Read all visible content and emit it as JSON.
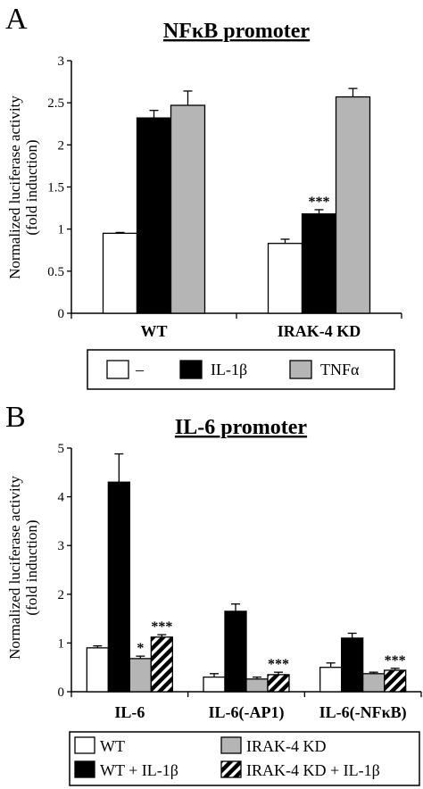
{
  "colors": {
    "white": "#ffffff",
    "black": "#000000",
    "gray": "#b5b5b5",
    "hatch": "hatched-black-white"
  },
  "chart_data": [
    {
      "panel": "A",
      "type": "bar",
      "title": "NFκB promoter",
      "ylabel_line1": "Normalized luciferase activity",
      "ylabel_line2": "(fold induction)",
      "ylim": [
        0,
        3
      ],
      "yticks": [
        "0",
        "0.5",
        "1",
        "1.5",
        "2",
        "2.5",
        "3"
      ],
      "categories": [
        "WT",
        "IRAK-4 KD"
      ],
      "series": [
        {
          "name": "–",
          "color": "#ffffff",
          "values": [
            0.95,
            0.83
          ],
          "errors": [
            0.01,
            0.05
          ],
          "stars": [
            "",
            ""
          ]
        },
        {
          "name": "IL-1β",
          "color": "#000000",
          "values": [
            2.32,
            1.18
          ],
          "errors": [
            0.09,
            0.05
          ],
          "stars": [
            "",
            "***"
          ]
        },
        {
          "name": "TNFα",
          "color": "#b5b5b5",
          "values": [
            2.47,
            2.57
          ],
          "errors": [
            0.17,
            0.1
          ],
          "stars": [
            "",
            ""
          ]
        }
      ],
      "legend": {
        "placement": "bottom",
        "entries": [
          "–",
          "IL-1β",
          "TNFα"
        ]
      }
    },
    {
      "panel": "B",
      "type": "bar",
      "title": "IL-6 promoter",
      "ylabel_line1": "Normalized luciferase activity",
      "ylabel_line2": "(fold induction)",
      "ylim": [
        0,
        5
      ],
      "yticks": [
        "0",
        "1",
        "2",
        "3",
        "4",
        "5"
      ],
      "categories": [
        "IL-6",
        "IL-6(-AP1)",
        "IL-6(-NFκB)"
      ],
      "series": [
        {
          "name": "WT",
          "color": "#ffffff",
          "values": [
            0.9,
            0.3,
            0.5
          ],
          "errors": [
            0.04,
            0.07,
            0.09
          ],
          "stars": [
            "",
            "",
            ""
          ]
        },
        {
          "name": "WT + IL-1β",
          "color": "#000000",
          "values": [
            4.3,
            1.65,
            1.1
          ],
          "errors": [
            0.58,
            0.15,
            0.1
          ],
          "stars": [
            "",
            "",
            ""
          ]
        },
        {
          "name": "IRAK-4 KD",
          "color": "#b5b5b5",
          "values": [
            0.68,
            0.26,
            0.37
          ],
          "errors": [
            0.05,
            0.04,
            0.03
          ],
          "stars": [
            "*",
            "",
            ""
          ]
        },
        {
          "name": "IRAK-4 KD + IL-1β",
          "color": "hatch",
          "values": [
            1.12,
            0.35,
            0.44
          ],
          "errors": [
            0.05,
            0.05,
            0.04
          ],
          "stars": [
            "***",
            "***",
            "***"
          ]
        }
      ],
      "legend": {
        "placement": "bottom",
        "entries": [
          "WT",
          "IRAK-4 KD",
          "WT + IL-1β",
          "IRAK-4 KD + IL-1β"
        ]
      }
    }
  ]
}
